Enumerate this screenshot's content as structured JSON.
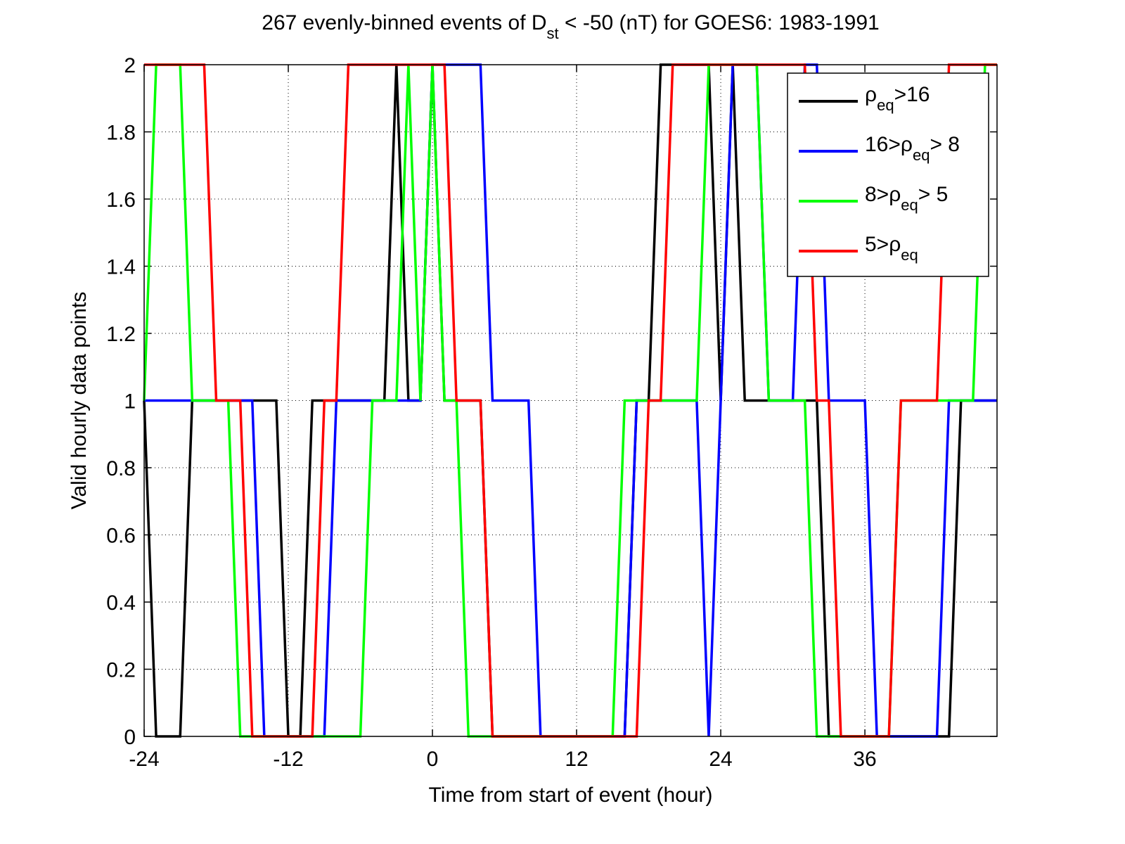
{
  "chart_data": {
    "type": "line",
    "title": [
      "267 evenly-binned events of D",
      "st",
      " < -50 (nT) for GOES6: 1983-1991"
    ],
    "x_label": "Time from start of event (hour)",
    "y_label": "Valid hourly data points",
    "x": [
      -24,
      -23,
      -22,
      -21,
      -20,
      -19,
      -18,
      -17,
      -16,
      -15,
      -14,
      -13,
      -12,
      -11,
      -10,
      -9,
      -8,
      -7,
      -6,
      -5,
      -4,
      -3,
      -2,
      -1,
      0,
      1,
      2,
      3,
      4,
      5,
      6,
      7,
      8,
      9,
      10,
      11,
      12,
      13,
      14,
      15,
      16,
      17,
      18,
      19,
      20,
      21,
      22,
      23,
      24,
      25,
      26,
      27,
      28,
      29,
      30,
      31,
      32,
      33,
      34,
      35,
      36,
      37,
      38,
      39,
      40,
      41,
      42,
      43,
      44,
      45,
      46,
      47
    ],
    "xlim": [
      -24,
      47
    ],
    "xticks": [
      -24,
      -12,
      0,
      12,
      24,
      36
    ],
    "ylim": [
      0,
      2
    ],
    "yticks": [
      0,
      0.2,
      0.4,
      0.6,
      0.8,
      1,
      1.2,
      1.4,
      1.6,
      1.8,
      2
    ],
    "grid": true,
    "legend": "upper right",
    "series": [
      {
        "name": [
          "ρ",
          "eq",
          ">16"
        ],
        "color": "#000000",
        "values": [
          1,
          0,
          0,
          0,
          1,
          1,
          1,
          1,
          1,
          1,
          1,
          1,
          0,
          0,
          1,
          1,
          1,
          1,
          1,
          1,
          1,
          2,
          1,
          1,
          2,
          1,
          1,
          1,
          1,
          0,
          0,
          0,
          0,
          0,
          0,
          0,
          0,
          0,
          0,
          0,
          0,
          1,
          1,
          2,
          2,
          2,
          2,
          2,
          1,
          2,
          1,
          1,
          1,
          1,
          1,
          1,
          1,
          0,
          0,
          0,
          0,
          0,
          0,
          0,
          0,
          0,
          0,
          0,
          1,
          1,
          1,
          1
        ]
      },
      {
        "name": [
          "16>ρ",
          "eq",
          "> 8"
        ],
        "color": "#0000ff",
        "values": [
          1,
          1,
          1,
          1,
          1,
          1,
          1,
          1,
          1,
          1,
          0,
          0,
          0,
          0,
          0,
          0,
          1,
          1,
          1,
          1,
          1,
          1,
          1,
          1,
          2,
          2,
          2,
          2,
          2,
          1,
          1,
          1,
          1,
          0,
          0,
          0,
          0,
          0,
          0,
          0,
          0,
          1,
          1,
          1,
          1,
          1,
          1,
          0,
          1,
          2,
          2,
          2,
          1,
          1,
          1,
          2,
          2,
          1,
          1,
          1,
          1,
          0,
          0,
          0,
          0,
          0,
          0,
          1,
          1,
          1,
          1,
          1
        ]
      },
      {
        "name": [
          "8>ρ",
          "eq",
          "> 5"
        ],
        "color": "#00ff00",
        "values": [
          1,
          2,
          2,
          2,
          1,
          1,
          1,
          1,
          0,
          0,
          0,
          0,
          0,
          0,
          0,
          0,
          0,
          0,
          0,
          1,
          1,
          1,
          2,
          1,
          2,
          1,
          1,
          0,
          0,
          0,
          0,
          0,
          0,
          0,
          0,
          0,
          0,
          0,
          0,
          0,
          1,
          1,
          1,
          1,
          1,
          1,
          1,
          2,
          2,
          2,
          2,
          2,
          1,
          1,
          1,
          1,
          0,
          0,
          0,
          0,
          0,
          0,
          0,
          1,
          1,
          1,
          1,
          1,
          1,
          1,
          2,
          2
        ]
      },
      {
        "name": [
          "5>ρ",
          "eq"
        ],
        "color": "#ff0000",
        "values": [
          2,
          2,
          2,
          2,
          2,
          2,
          1,
          1,
          1,
          0,
          0,
          0,
          0,
          0,
          0,
          1,
          1,
          2,
          2,
          2,
          2,
          2,
          2,
          2,
          2,
          2,
          1,
          1,
          1,
          0,
          0,
          0,
          0,
          0,
          0,
          0,
          0,
          0,
          0,
          0,
          0,
          0,
          1,
          1,
          2,
          2,
          2,
          2,
          2,
          2,
          2,
          2,
          2,
          2,
          2,
          2,
          1,
          1,
          0,
          0,
          0,
          0,
          0,
          1,
          1,
          1,
          1,
          2,
          2,
          2,
          2,
          2
        ]
      }
    ]
  }
}
